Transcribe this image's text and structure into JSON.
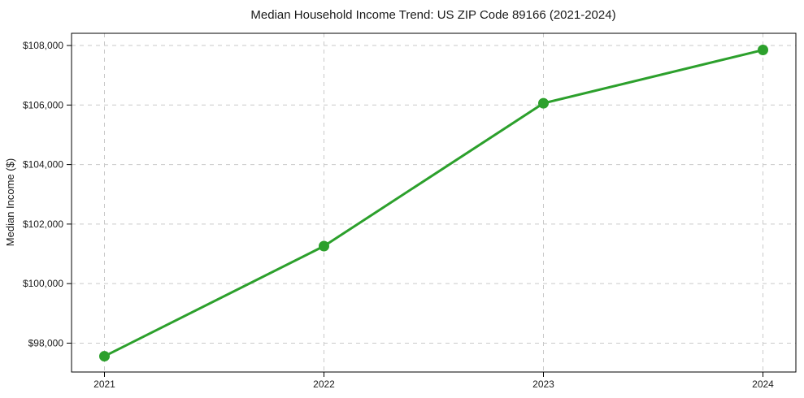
{
  "chart_data": {
    "type": "line",
    "title": "Median Household Income Trend: US ZIP Code 89166 (2021-2024)",
    "xlabel": "",
    "ylabel": "Median Income ($)",
    "x": [
      2021,
      2022,
      2023,
      2024
    ],
    "x_tick_labels": [
      "2021",
      "2022",
      "2023",
      "2024"
    ],
    "values": [
      97560,
      101260,
      106060,
      107850
    ],
    "y_ticks": [
      98000,
      100000,
      102000,
      104000,
      106000,
      108000
    ],
    "y_tick_labels": [
      "$98,000",
      "$100,000",
      "$102,000",
      "$104,000",
      "$106,000",
      "$108,000"
    ],
    "xlim": [
      2020.85,
      2024.15
    ],
    "ylim": [
      97030,
      108410
    ],
    "grid": {
      "show": true,
      "axis": "both",
      "style": "dashed",
      "color": "#c9c9c9"
    },
    "legend": "none",
    "marker": "circle",
    "colors": {
      "line": "#2ca02c",
      "marker": "#2ca02c",
      "frame": "#000000",
      "text": "#1a1a1a",
      "background": "#ffffff"
    }
  }
}
